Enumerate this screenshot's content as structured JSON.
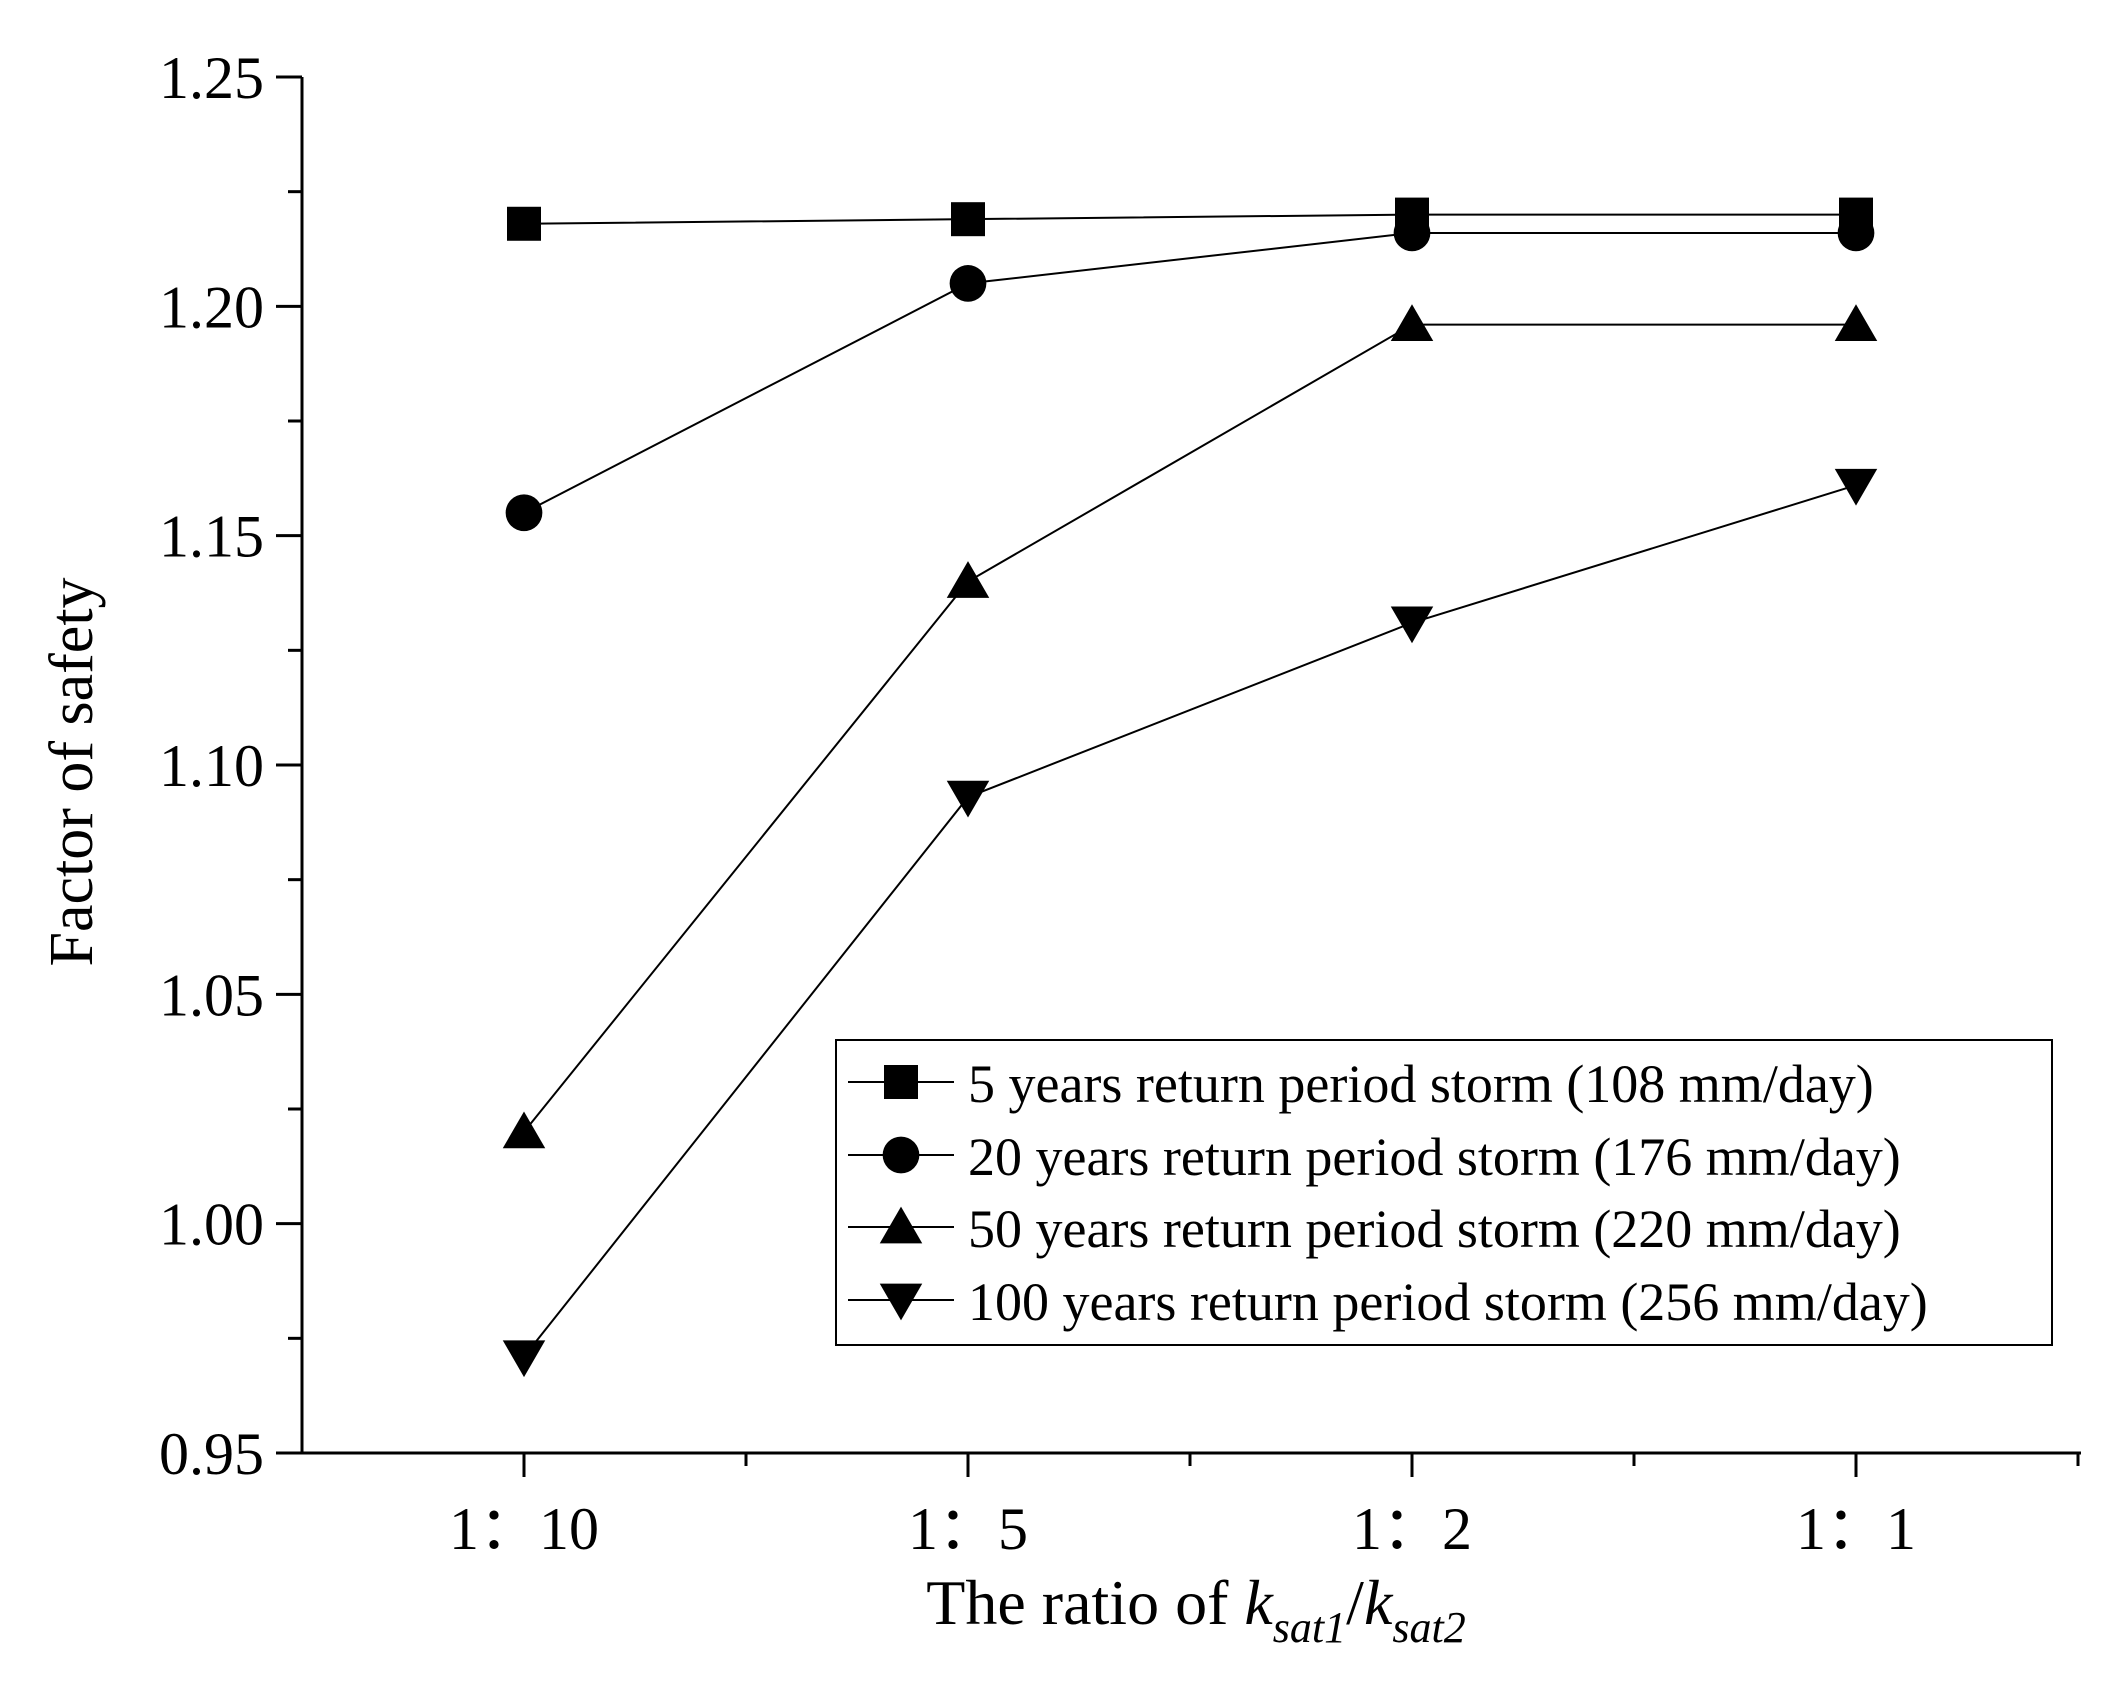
{
  "chart_data": {
    "type": "line",
    "title": "",
    "ylabel": "Factor of safety",
    "xlabel_parts": {
      "prefix": "The ratio of ",
      "var1": "k",
      "sub1": "sat1",
      "slash": "/",
      "var2": "k",
      "sub2": "sat2"
    },
    "categories": [
      "1：10",
      "1：5",
      "1：2",
      "1：1"
    ],
    "ylim": [
      0.95,
      1.25
    ],
    "yticks": [
      "0.95",
      "1.00",
      "1.05",
      "1.10",
      "1.15",
      "1.20",
      "1.25"
    ],
    "grid": false,
    "legend_position": "bottom-right",
    "series": [
      {
        "name": "5 years return period storm (108 mm/day)",
        "marker": "square",
        "values": [
          1.218,
          1.219,
          1.22,
          1.22
        ]
      },
      {
        "name": "20 years return period storm (176 mm/day)",
        "marker": "circle",
        "values": [
          1.155,
          1.205,
          1.216,
          1.216
        ]
      },
      {
        "name": "50 years return period storm (220 mm/day)",
        "marker": "triangle-up",
        "values": [
          1.02,
          1.14,
          1.196,
          1.196
        ]
      },
      {
        "name": "100 years return period storm (256 mm/day)",
        "marker": "triangle-down",
        "values": [
          0.971,
          1.093,
          1.131,
          1.161
        ]
      }
    ]
  },
  "colors": {
    "line": "#000000",
    "background": "#ffffff"
  }
}
